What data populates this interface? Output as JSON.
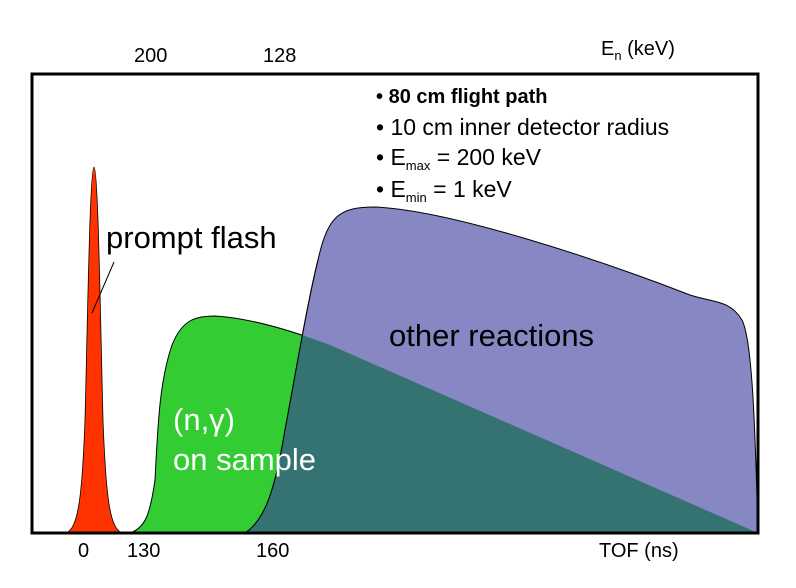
{
  "colors": {
    "prompt_flash": "#ff3300",
    "n_gamma": "#33cc33",
    "other_reactions": "#8787c3",
    "overlap": "#357272",
    "frame": "#000000"
  },
  "top_axis": {
    "label_main": "E",
    "label_sub": "n",
    "label_unit": " (keV)",
    "ticks": [
      "200",
      "128"
    ]
  },
  "bottom_axis": {
    "label": "TOF (ns)",
    "ticks": [
      "0",
      "130",
      "160"
    ]
  },
  "bullets": [
    {
      "text": "80 cm flight path",
      "bold": true
    },
    {
      "text": "10 cm inner detector radius"
    },
    {
      "main": "E",
      "sub": "max",
      "rest": " = 200 keV"
    },
    {
      "main": "E",
      "sub": "min",
      "rest": " = 1 keV"
    }
  ],
  "bullet_char": "•",
  "labels": {
    "prompt_flash": "prompt flash",
    "n_gamma_line1": "(n,γ)",
    "n_gamma_line2": "on sample",
    "other_reactions": "other reactions"
  }
}
